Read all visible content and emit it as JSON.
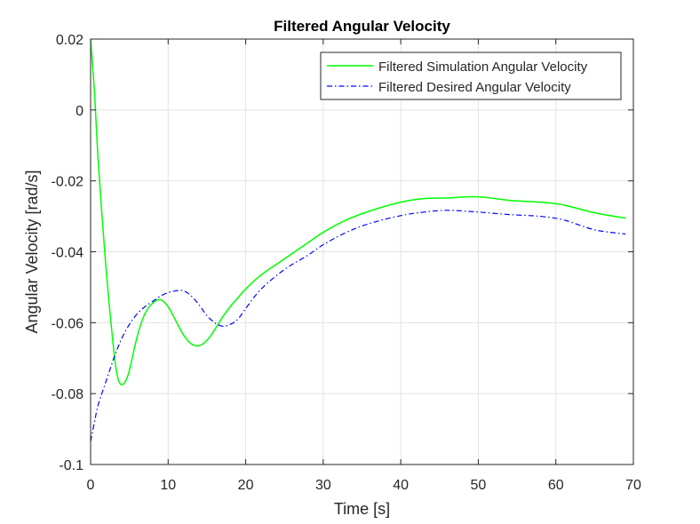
{
  "chart_data": {
    "type": "line",
    "title": "Filtered Angular Velocity",
    "xlabel": "Time [s]",
    "ylabel": "Angular Velocity [rad/s]",
    "xlim": [
      0,
      70
    ],
    "ylim": [
      -0.1,
      0.02
    ],
    "xticks": [
      0,
      10,
      20,
      30,
      40,
      50,
      60,
      70
    ],
    "xtick_labels": [
      "0",
      "10",
      "20",
      "30",
      "40",
      "50",
      "60",
      "70"
    ],
    "yticks": [
      0.02,
      0,
      -0.02,
      -0.04,
      -0.06,
      -0.08,
      -0.1
    ],
    "ytick_labels": [
      "0.02",
      "0",
      "-0.02",
      "-0.04",
      "-0.06",
      "-0.08",
      "-0.1"
    ],
    "grid": true,
    "legend_position": "top-right",
    "series": [
      {
        "name": "Filtered Simulation Angular Velocity",
        "color": "#00ff00",
        "dash": "solid",
        "x": [
          0,
          0.5,
          1,
          2,
          3,
          3.5,
          4,
          4.5,
          5,
          6,
          7,
          8,
          9,
          10,
          11,
          12,
          13,
          14,
          15,
          16,
          17,
          18,
          19,
          20,
          22,
          25,
          28,
          30,
          33,
          36,
          40,
          43,
          46,
          50,
          54,
          58,
          61,
          65,
          69
        ],
        "y": [
          0.02,
          0.005,
          -0.015,
          -0.045,
          -0.068,
          -0.0755,
          -0.0775,
          -0.0765,
          -0.0735,
          -0.064,
          -0.0575,
          -0.0545,
          -0.0535,
          -0.0555,
          -0.0595,
          -0.0635,
          -0.066,
          -0.0665,
          -0.065,
          -0.062,
          -0.0585,
          -0.0555,
          -0.053,
          -0.0505,
          -0.0465,
          -0.042,
          -0.0375,
          -0.0345,
          -0.031,
          -0.0285,
          -0.026,
          -0.025,
          -0.0248,
          -0.0245,
          -0.0255,
          -0.026,
          -0.0268,
          -0.029,
          -0.0305
        ]
      },
      {
        "name": "Filtered Desired Angular Velocity",
        "color": "#0000ff",
        "dash": "dashdot",
        "x": [
          0,
          0.5,
          1,
          2,
          3,
          4,
          5,
          6,
          7,
          8,
          9,
          10,
          11,
          12,
          13,
          14,
          15,
          16,
          17,
          18,
          19,
          20,
          22,
          25,
          28,
          30,
          33,
          36,
          40,
          43,
          46,
          50,
          54,
          58,
          61,
          65,
          69
        ],
        "y": [
          -0.0935,
          -0.088,
          -0.083,
          -0.0765,
          -0.07,
          -0.0645,
          -0.0605,
          -0.0575,
          -0.0555,
          -0.054,
          -0.0525,
          -0.0515,
          -0.051,
          -0.051,
          -0.0525,
          -0.055,
          -0.058,
          -0.06,
          -0.061,
          -0.0605,
          -0.059,
          -0.056,
          -0.0505,
          -0.045,
          -0.041,
          -0.038,
          -0.0345,
          -0.032,
          -0.0298,
          -0.0288,
          -0.0283,
          -0.0288,
          -0.0295,
          -0.03,
          -0.031,
          -0.0338,
          -0.035
        ]
      }
    ]
  }
}
